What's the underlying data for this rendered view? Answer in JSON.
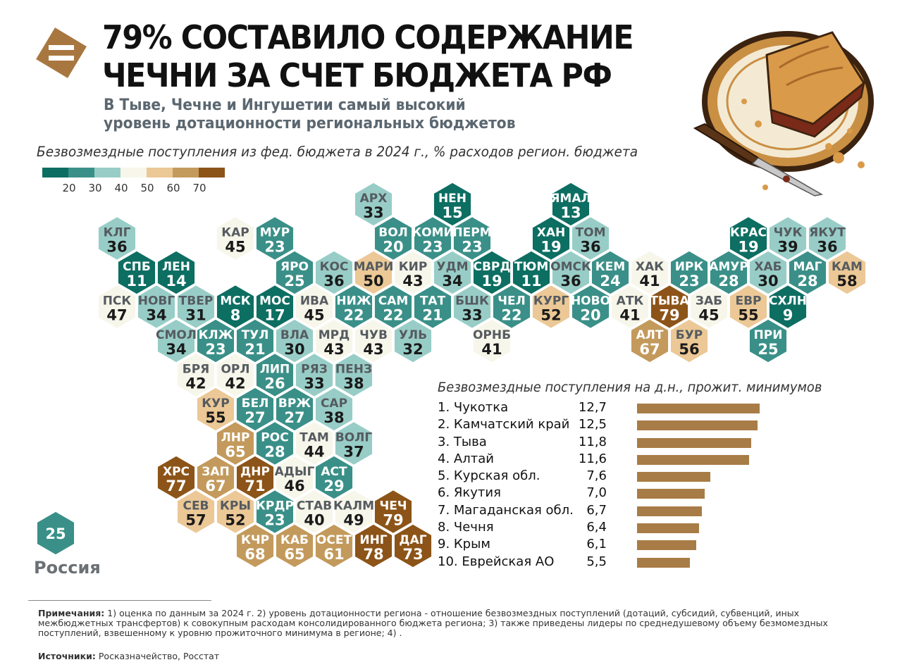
{
  "header": {
    "title_line1": "79% СОСТАВИЛО СОДЕРЖАНИЕ",
    "title_line2": "ЧЕЧНИ ЗА СЧЕТ БЮДЖЕТА РФ",
    "subtitle_line1": "В Тыве, Чечне и Ингушетии самый высокий",
    "subtitle_line2": "уровень дотационности региональных бюджетов"
  },
  "map": {
    "caption": "Безвозмездные поступления из фед. бюджета в 2024 г., % расходов регион. бюджета",
    "legend": {
      "colors": [
        "#0d6e62",
        "#3a9088",
        "#98cdc7",
        "#f7f6ea",
        "#ebc896",
        "#c39a5c",
        "#8c5418"
      ],
      "ticks": [
        "20",
        "30",
        "40",
        "50",
        "60",
        "70"
      ]
    },
    "regions": [
      {
        "abbr": "АРХ",
        "value": 33,
        "col": 8,
        "row": 0
      },
      {
        "abbr": "НЕН",
        "value": 15,
        "col": 10,
        "row": 0
      },
      {
        "abbr": "ЯМАЛ",
        "value": 13,
        "col": 13,
        "row": 0
      },
      {
        "abbr": "КЛГ",
        "value": 36,
        "col": 1,
        "row": 1
      },
      {
        "abbr": "КАР",
        "value": 45,
        "col": 4,
        "row": 1
      },
      {
        "abbr": "МУР",
        "value": 23,
        "col": 5,
        "row": 1
      },
      {
        "abbr": "ВОЛ",
        "value": 20,
        "col": 8,
        "row": 1
      },
      {
        "abbr": "КОМИ",
        "value": 23,
        "col": 9,
        "row": 1
      },
      {
        "abbr": "ПЕРМ",
        "value": 23,
        "col": 10,
        "row": 1
      },
      {
        "abbr": "ХАН",
        "value": 19,
        "col": 12,
        "row": 1
      },
      {
        "abbr": "ТОМ",
        "value": 36,
        "col": 13,
        "row": 1
      },
      {
        "abbr": "КРАС",
        "value": 19,
        "col": 17,
        "row": 1
      },
      {
        "abbr": "ЧУК",
        "value": 39,
        "col": 18,
        "row": 1
      },
      {
        "abbr": "ЯКУТ",
        "value": 36,
        "col": 19,
        "row": 1
      },
      {
        "abbr": "СПБ",
        "value": 11,
        "col": 2,
        "row": 2
      },
      {
        "abbr": "ЛЕН",
        "value": 14,
        "col": 3,
        "row": 2
      },
      {
        "abbr": "ЯРО",
        "value": 25,
        "col": 6,
        "row": 2
      },
      {
        "abbr": "КОС",
        "value": 36,
        "col": 7,
        "row": 2
      },
      {
        "abbr": "МАРИ",
        "value": 50,
        "col": 8,
        "row": 2
      },
      {
        "abbr": "КИР",
        "value": 43,
        "col": 9,
        "row": 2
      },
      {
        "abbr": "УДМ",
        "value": 34,
        "col": 10,
        "row": 2
      },
      {
        "abbr": "СВРД",
        "value": 19,
        "col": 11,
        "row": 2
      },
      {
        "abbr": "ТЮМ",
        "value": 11,
        "col": 12,
        "row": 2
      },
      {
        "abbr": "ОМСК",
        "value": 36,
        "col": 13,
        "row": 2
      },
      {
        "abbr": "КЕМ",
        "value": 24,
        "col": 14,
        "row": 2
      },
      {
        "abbr": "ХАК",
        "value": 41,
        "col": 15,
        "row": 2
      },
      {
        "abbr": "ИРК",
        "value": 23,
        "col": 16,
        "row": 2
      },
      {
        "abbr": "АМУР",
        "value": 28,
        "col": 17,
        "row": 2
      },
      {
        "abbr": "ХАБ",
        "value": 30,
        "col": 18,
        "row": 2
      },
      {
        "abbr": "МАГ",
        "value": 28,
        "col": 19,
        "row": 2
      },
      {
        "abbr": "КАМ",
        "value": 58,
        "col": 20,
        "row": 2
      },
      {
        "abbr": "ПСК",
        "value": 47,
        "col": 1,
        "row": 3
      },
      {
        "abbr": "НОВГ",
        "value": 34,
        "col": 2,
        "row": 3
      },
      {
        "abbr": "ТВЕР",
        "value": 31,
        "col": 3,
        "row": 3
      },
      {
        "abbr": "МСК",
        "value": 8,
        "col": 4,
        "row": 3
      },
      {
        "abbr": "МОС",
        "value": 17,
        "col": 5,
        "row": 3
      },
      {
        "abbr": "ИВА",
        "value": 45,
        "col": 6,
        "row": 3
      },
      {
        "abbr": "НИЖ",
        "value": 22,
        "col": 7,
        "row": 3
      },
      {
        "abbr": "САМ",
        "value": 22,
        "col": 8,
        "row": 3
      },
      {
        "abbr": "ТАТ",
        "value": 21,
        "col": 9,
        "row": 3
      },
      {
        "abbr": "БШК",
        "value": 33,
        "col": 10,
        "row": 3
      },
      {
        "abbr": "ЧЕЛ",
        "value": 22,
        "col": 11,
        "row": 3
      },
      {
        "abbr": "КУРГ",
        "value": 52,
        "col": 12,
        "row": 3
      },
      {
        "abbr": "НОВО",
        "value": 20,
        "col": 13,
        "row": 3
      },
      {
        "abbr": "АТК",
        "value": 41,
        "col": 14,
        "row": 3
      },
      {
        "abbr": "ТЫВА",
        "value": 79,
        "col": 15,
        "row": 3
      },
      {
        "abbr": "ЗАБ",
        "value": 45,
        "col": 16,
        "row": 3
      },
      {
        "abbr": "ЕВР",
        "value": 55,
        "col": 17,
        "row": 3
      },
      {
        "abbr": "СХЛН",
        "value": 9,
        "col": 18,
        "row": 3
      },
      {
        "abbr": "СМОЛ",
        "value": 34,
        "col": 3,
        "row": 4
      },
      {
        "abbr": "КЛЖ",
        "value": 23,
        "col": 4,
        "row": 4
      },
      {
        "abbr": "ТУЛ",
        "value": 21,
        "col": 5,
        "row": 4
      },
      {
        "abbr": "ВЛА",
        "value": 30,
        "col": 6,
        "row": 4
      },
      {
        "abbr": "МРД",
        "value": 43,
        "col": 7,
        "row": 4
      },
      {
        "abbr": "ЧУВ",
        "value": 43,
        "col": 8,
        "row": 4
      },
      {
        "abbr": "УЛЬ",
        "value": 32,
        "col": 9,
        "row": 4
      },
      {
        "abbr": "ОРНБ",
        "value": 41,
        "col": 11,
        "row": 4
      },
      {
        "abbr": "АЛТ",
        "value": 67,
        "col": 15,
        "row": 4
      },
      {
        "abbr": "БУР",
        "value": 56,
        "col": 16,
        "row": 4
      },
      {
        "abbr": "ПРИ",
        "value": 25,
        "col": 18,
        "row": 4
      },
      {
        "abbr": "БРЯ",
        "value": 42,
        "col": 3,
        "row": 5
      },
      {
        "abbr": "ОРЛ",
        "value": 42,
        "col": 4,
        "row": 5
      },
      {
        "abbr": "ЛИП",
        "value": 26,
        "col": 5,
        "row": 5
      },
      {
        "abbr": "РЯЗ",
        "value": 33,
        "col": 6,
        "row": 5
      },
      {
        "abbr": "ПЕНЗ",
        "value": 38,
        "col": 7,
        "row": 5
      },
      {
        "abbr": "КУР",
        "value": 55,
        "col": 4,
        "row": 6
      },
      {
        "abbr": "БЕЛ",
        "value": 27,
        "col": 5,
        "row": 6
      },
      {
        "abbr": "ВРЖ",
        "value": 27,
        "col": 6,
        "row": 6
      },
      {
        "abbr": "САР",
        "value": 38,
        "col": 7,
        "row": 6
      },
      {
        "abbr": "ЛНР",
        "value": 65,
        "col": 4,
        "row": 7
      },
      {
        "abbr": "РОС",
        "value": 28,
        "col": 5,
        "row": 7
      },
      {
        "abbr": "ТАМ",
        "value": 44,
        "col": 6,
        "row": 7
      },
      {
        "abbr": "ВОЛГ",
        "value": 37,
        "col": 7,
        "row": 7
      },
      {
        "abbr": "ХРС",
        "value": 77,
        "col": 3,
        "row": 8
      },
      {
        "abbr": "ЗАП",
        "value": 67,
        "col": 4,
        "row": 8
      },
      {
        "abbr": "ДНР",
        "value": 71,
        "col": 5,
        "row": 8
      },
      {
        "abbr": "АДЫГ",
        "value": 46,
        "col": 6,
        "row": 8
      },
      {
        "abbr": "АСТ",
        "value": 29,
        "col": 7,
        "row": 8
      },
      {
        "abbr": "СЕВ",
        "value": 57,
        "col": 3,
        "row": 9
      },
      {
        "abbr": "КРЫ",
        "value": 52,
        "col": 4,
        "row": 9
      },
      {
        "abbr": "КРДР",
        "value": 23,
        "col": 5,
        "row": 9
      },
      {
        "abbr": "СТАВ",
        "value": 40,
        "col": 6,
        "row": 9
      },
      {
        "abbr": "КАЛМ",
        "value": 49,
        "col": 7,
        "row": 9
      },
      {
        "abbr": "ЧЕЧ",
        "value": 79,
        "col": 8,
        "row": 9
      },
      {
        "abbr": "КЧР",
        "value": 68,
        "col": 5,
        "row": 10
      },
      {
        "abbr": "КАБ",
        "value": 65,
        "col": 6,
        "row": 10
      },
      {
        "abbr": "ОСЕТ",
        "value": 61,
        "col": 7,
        "row": 10
      },
      {
        "abbr": "ИНГ",
        "value": 78,
        "col": 8,
        "row": 10
      },
      {
        "abbr": "ДАГ",
        "value": 73,
        "col": 9,
        "row": 10
      }
    ],
    "russia": {
      "value": 25,
      "label": "Россия"
    }
  },
  "ranking": {
    "title": "Безвозмездные поступления на д.н., прожит. минимумов",
    "items": [
      {
        "name": "1. Чукотка",
        "value_text": "12,7",
        "value": 12.7
      },
      {
        "name": "2. Камчатский край",
        "value_text": "12,5",
        "value": 12.5
      },
      {
        "name": "3. Тыва",
        "value_text": "11,8",
        "value": 11.8
      },
      {
        "name": "4. Алтай",
        "value_text": "11,6",
        "value": 11.6
      },
      {
        "name": "5. Курская обл.",
        "value_text": "7,6",
        "value": 7.6
      },
      {
        "name": "6. Якутия",
        "value_text": "7,0",
        "value": 7.0
      },
      {
        "name": "7. Магаданская обл.",
        "value_text": "6,7",
        "value": 6.7
      },
      {
        "name": "8. Чечня",
        "value_text": "6,4",
        "value": 6.4
      },
      {
        "name": "9. Крым",
        "value_text": "6,1",
        "value": 6.1
      },
      {
        "name": "10. Еврейская АО",
        "value_text": "5,5",
        "value": 5.5
      }
    ]
  },
  "notes": {
    "label": "Примечания:",
    "text": " 1) оценка по данным за 2024 г. 2) уровень дотационности региона - отношение безвозмездных поступлений (дотаций, субсидий, субвенций, иных межбюджетных трансфертов) к совокупным расходам консолидированного бюджета региона; 3) также приведены лидеры по среднедушевому объему безмомездных поступлений, взвешенному к уровню прожиточного минимума в регионе; 4) ."
  },
  "sources": {
    "label": "Источники:",
    "text": " Росказначейство, Росстат"
  }
}
